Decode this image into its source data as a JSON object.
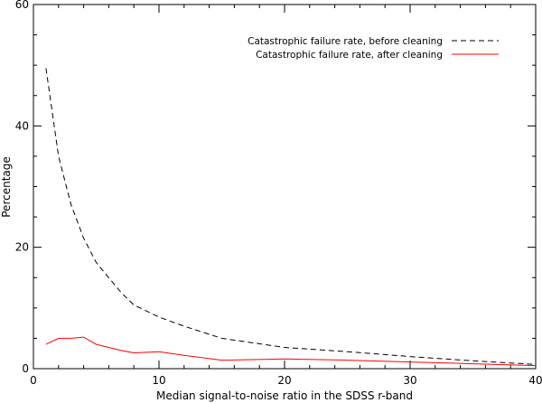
{
  "chart_data": {
    "type": "line",
    "title": "",
    "xlabel": "Median signal-to-noise ratio in the SDSS r-band",
    "ylabel": "Percentage",
    "xlim": [
      0,
      40
    ],
    "ylim": [
      0,
      60
    ],
    "xticks": [
      0,
      10,
      20,
      30,
      40
    ],
    "yticks": [
      0,
      20,
      40,
      60
    ],
    "grid": false,
    "legend_position": "top-right",
    "series": [
      {
        "name": "Catastrophic failure rate, before cleaning",
        "color": "#000000",
        "dash": true,
        "x": [
          1,
          2,
          3,
          4,
          5,
          6,
          7,
          8,
          9,
          10,
          12,
          15,
          20,
          25,
          30,
          35,
          40
        ],
        "y": [
          49.5,
          35,
          27,
          21.5,
          17.5,
          15,
          12.5,
          10.5,
          9.5,
          8.5,
          7,
          5,
          3.5,
          2.8,
          2,
          1.3,
          0.7
        ]
      },
      {
        "name": "Catastrophic failure rate, after cleaning",
        "color": "#ff0000",
        "dash": false,
        "x": [
          1,
          2,
          3,
          4,
          5,
          6,
          7,
          8,
          9,
          10,
          12,
          15,
          20,
          25,
          30,
          35,
          40
        ],
        "y": [
          4,
          5,
          5,
          5.2,
          4,
          3.5,
          3,
          2.6,
          2.7,
          2.8,
          2.2,
          1.4,
          1.6,
          1.4,
          1.1,
          0.8,
          0.5
        ]
      }
    ]
  }
}
